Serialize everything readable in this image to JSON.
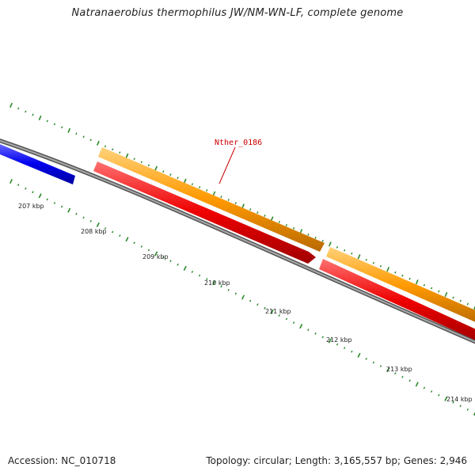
{
  "title": "Natranaerobius thermophilus JW/NM-WN-LF, complete genome",
  "accession_text": "Accession: NC_010718",
  "summary_text": "Topology: circular; Length: 3,165,557 bp; Genes: 2,946",
  "colors": {
    "backbone": "#808080",
    "gene_blue": "#0000ee",
    "gene_orange": "#ff9900",
    "gene_red": "#ee0000",
    "tick": "#2a8a2a",
    "label": "#cc0000"
  },
  "gene_label": "Nther_0186",
  "ruler_labels": [
    "207 kbp",
    "208 kbp",
    "209 kbp",
    "210 kbp",
    "211 kbp",
    "212 kbp",
    "213 kbp",
    "214 kbp"
  ]
}
